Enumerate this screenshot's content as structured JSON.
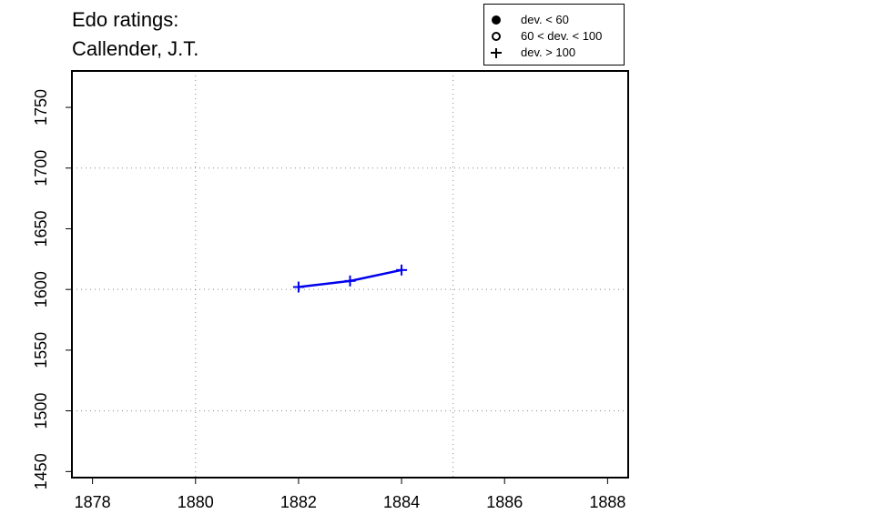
{
  "chart_data": {
    "type": "line",
    "title_lines": [
      "Edo ratings:",
      "Callender, J.T."
    ],
    "xlabel": "",
    "ylabel": "",
    "xlim": [
      1877.6,
      1888.4
    ],
    "ylim": [
      1445,
      1780
    ],
    "x_ticks": [
      1878,
      1880,
      1882,
      1884,
      1886,
      1888
    ],
    "y_ticks": [
      1450,
      1500,
      1550,
      1600,
      1650,
      1700,
      1750
    ],
    "grid_x": [
      1880,
      1885
    ],
    "grid_y": [
      1500,
      1600,
      1700
    ],
    "grid": true,
    "legend_position": "top-right",
    "legend": [
      {
        "symbol": "filled-circle",
        "label": "dev. < 60"
      },
      {
        "symbol": "open-circle",
        "label": "60 < dev. < 100"
      },
      {
        "symbol": "plus",
        "label": "dev. > 100"
      }
    ],
    "series": [
      {
        "color": "#0000ee",
        "marker": "plus",
        "x": [
          1882,
          1883,
          1884
        ],
        "y": [
          1602,
          1607,
          1616
        ]
      }
    ]
  }
}
